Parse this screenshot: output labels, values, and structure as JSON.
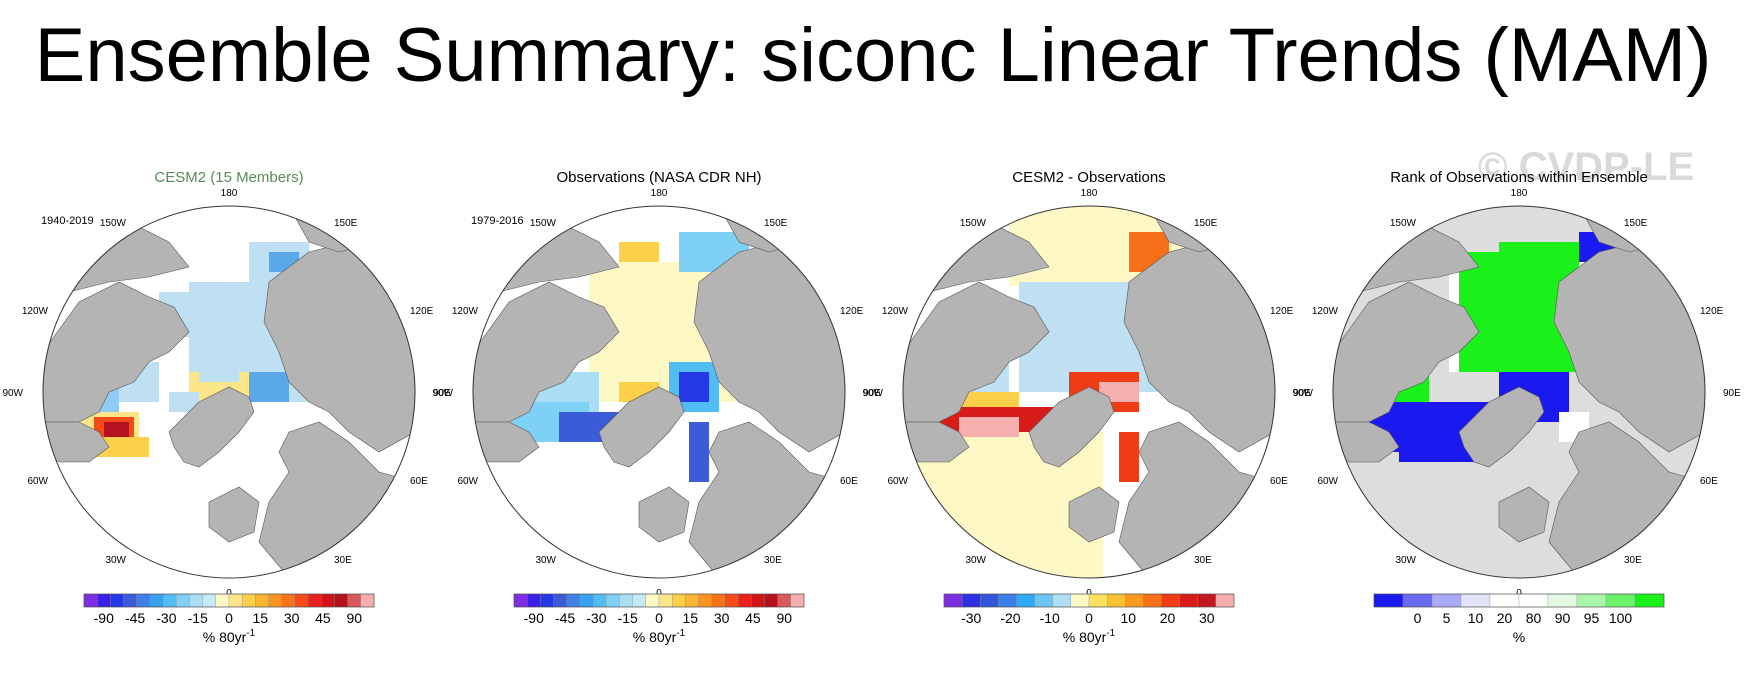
{
  "title": "Ensemble Summary: siconc Linear Trends (MAM)",
  "watermark": "© CVDP-LE",
  "colors": {
    "land": "#b4b4b4",
    "neutral_light": "#bfe0f2",
    "neutral_yellow": "#fdf5a0",
    "rank_background": "#dddddd"
  },
  "panels": [
    {
      "id": "cesm2",
      "title": "CESM2 (15 Members)",
      "title_color": "#5a8a5a",
      "period": "1940-2019",
      "units_label": "% 80yr",
      "units_sup": "-1",
      "colorbar": {
        "colors": [
          "#7d2ee0",
          "#3b1fe6",
          "#2438e8",
          "#3a5cd9",
          "#3f7fe6",
          "#3aa0f0",
          "#52bdf5",
          "#7fd0f5",
          "#a9def5",
          "#c6e9f8",
          "#fef9c4",
          "#fde68a",
          "#fdd04c",
          "#fcb530",
          "#fb9520",
          "#f8741a",
          "#f54b16",
          "#e8221a",
          "#d11418",
          "#b51220",
          "#d9585a",
          "#f6aeae"
        ],
        "labels": [
          "-90",
          "-45",
          "-30",
          "-15",
          "0",
          "15",
          "30",
          "45",
          "90"
        ]
      }
    },
    {
      "id": "obs",
      "title": "Observations (NASA CDR NH)",
      "title_color": "#000000",
      "period": "1979-2016",
      "units_label": "% 80yr",
      "units_sup": "-1",
      "colorbar": {
        "colors": [
          "#7d2ee0",
          "#3b1fe6",
          "#2438e8",
          "#3a5cd9",
          "#3f7fe6",
          "#3aa0f0",
          "#52bdf5",
          "#7fd0f5",
          "#a9def5",
          "#c6e9f8",
          "#fef9c4",
          "#fde68a",
          "#fdd04c",
          "#fcb530",
          "#fb9520",
          "#f8741a",
          "#f54b16",
          "#e8221a",
          "#d11418",
          "#b51220",
          "#d9585a",
          "#f6aeae"
        ],
        "labels": [
          "-90",
          "-45",
          "-30",
          "-15",
          "0",
          "15",
          "30",
          "45",
          "90"
        ]
      }
    },
    {
      "id": "diff",
      "title": "CESM2 - Observations",
      "title_color": "#000000",
      "period": "",
      "units_label": "% 80yr",
      "units_sup": "-1",
      "colorbar": {
        "colors": [
          "#7d2ee0",
          "#2f2fe6",
          "#3355dd",
          "#3a7fe8",
          "#2fa8f5",
          "#6cc6f3",
          "#b0def4",
          "#fef9c4",
          "#fde060",
          "#fcc035",
          "#fb9a22",
          "#f7701a",
          "#ee3d16",
          "#d81c1a",
          "#c21820",
          "#f6aeae"
        ],
        "labels": [
          "-30",
          "-20",
          "-10",
          "0",
          "10",
          "20",
          "30"
        ]
      }
    },
    {
      "id": "rank",
      "title": "Rank of Observations within Ensemble",
      "title_color": "#000000",
      "period": "",
      "units_label": "%",
      "units_sup": "",
      "colorbar": {
        "colors": [
          "#1a1af0",
          "#6b6bf2",
          "#a9a9f5",
          "#e3e3fa",
          "#ffffff",
          "#ffffff",
          "#e3fae3",
          "#a9f5a9",
          "#6bf26b",
          "#1af01a"
        ],
        "labels": [
          "0",
          "5",
          "10",
          "20",
          "80",
          "90",
          "95",
          "100"
        ]
      }
    }
  ],
  "map_labels": {
    "top": "180",
    "bottom": "0",
    "left": "90W",
    "right": "90E",
    "top_left": "150W",
    "top_right": "150E",
    "upper_left": "120W",
    "upper_right": "120E",
    "lower_left": "60W",
    "lower_right": "60E",
    "bottom_left": "30W",
    "bottom_right": "30E"
  }
}
